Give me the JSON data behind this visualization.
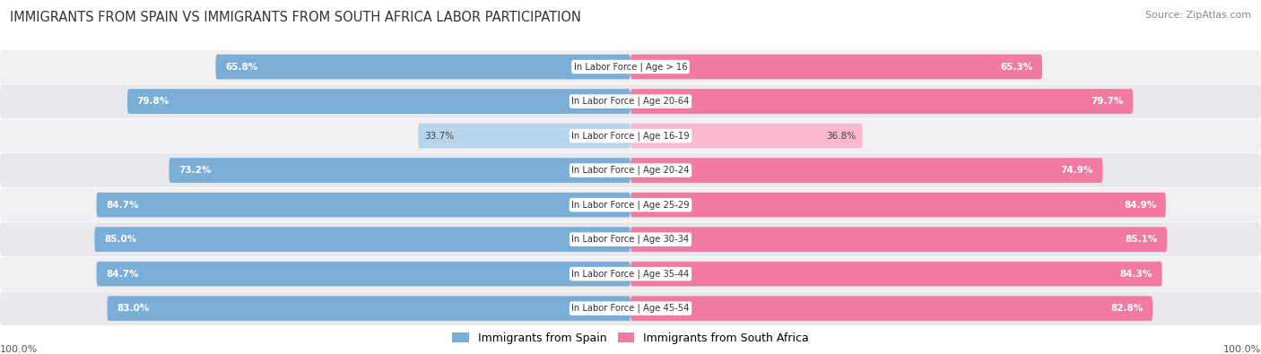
{
  "title": "IMMIGRANTS FROM SPAIN VS IMMIGRANTS FROM SOUTH AFRICA LABOR PARTICIPATION",
  "source": "Source: ZipAtlas.com",
  "categories": [
    "In Labor Force | Age > 16",
    "In Labor Force | Age 20-64",
    "In Labor Force | Age 16-19",
    "In Labor Force | Age 20-24",
    "In Labor Force | Age 25-29",
    "In Labor Force | Age 30-34",
    "In Labor Force | Age 35-44",
    "In Labor Force | Age 45-54"
  ],
  "spain_values": [
    65.8,
    79.8,
    33.7,
    73.2,
    84.7,
    85.0,
    84.7,
    83.0
  ],
  "sa_values": [
    65.3,
    79.7,
    36.8,
    74.9,
    84.9,
    85.1,
    84.3,
    82.8
  ],
  "spain_color": "#7aaed6",
  "spain_color_light": "#b8d4ea",
  "sa_color": "#f07aa0",
  "sa_color_light": "#f9b8ce",
  "row_bg_colors": [
    "#f0f0f2",
    "#e8e8ec"
  ],
  "max_value": 100.0,
  "legend_spain": "Immigrants from Spain",
  "legend_sa": "Immigrants from South Africa",
  "threshold_light": 50.0
}
